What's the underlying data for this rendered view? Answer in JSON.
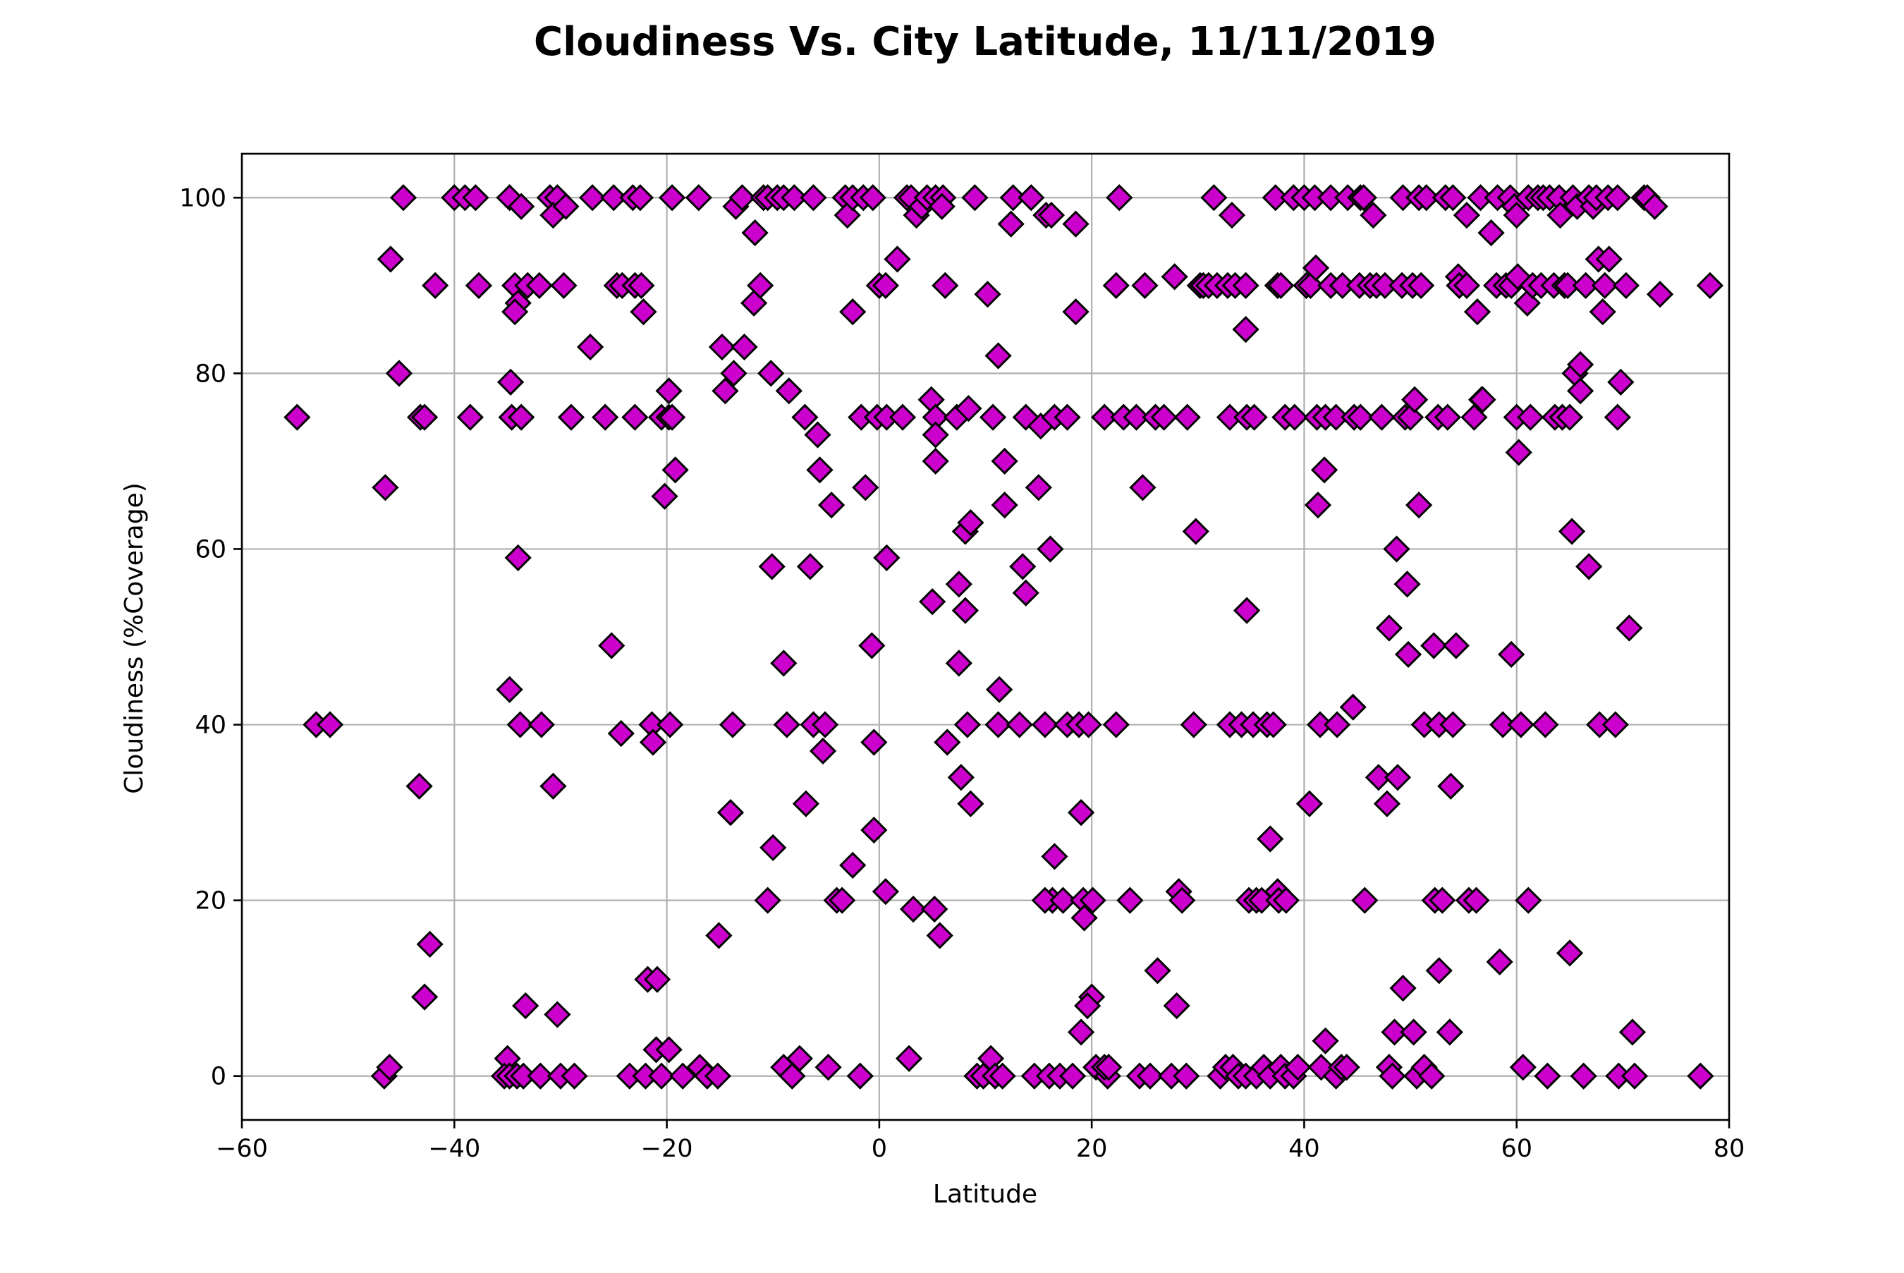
{
  "chart_data": {
    "type": "scatter",
    "title": "Cloudiness Vs. City Latitude, 11/11/2019",
    "xlabel": "Latitude",
    "ylabel": "Cloudiness (%Coverage)",
    "xlim": [
      -60,
      80
    ],
    "ylim": [
      -5,
      105
    ],
    "xticks": [
      -60,
      -40,
      -20,
      0,
      20,
      40,
      60,
      80
    ],
    "yticks": [
      0,
      20,
      40,
      60,
      80,
      100
    ],
    "xtick_labels": [
      "−60",
      "−40",
      "−20",
      "0",
      "20",
      "40",
      "60",
      "80"
    ],
    "ytick_labels": [
      "0",
      "20",
      "40",
      "60",
      "80",
      "100"
    ],
    "grid": true,
    "marker": "diamond",
    "marker_color": "#cc00cc",
    "marker_edge_color": "#000000",
    "points": [
      [
        -54.8,
        75
      ],
      [
        -53,
        40
      ],
      [
        -51.7,
        40
      ],
      [
        -46,
        93
      ],
      [
        -46.5,
        67
      ],
      [
        -44.8,
        100
      ],
      [
        -45.2,
        80
      ],
      [
        -43.2,
        75
      ],
      [
        -42.8,
        75
      ],
      [
        -43.3,
        33
      ],
      [
        -41.8,
        90
      ],
      [
        -42.3,
        15
      ],
      [
        -42.8,
        9
      ],
      [
        -46.6,
        0
      ],
      [
        -46.1,
        1
      ],
      [
        -40,
        100
      ],
      [
        -39,
        100
      ],
      [
        -38,
        100
      ],
      [
        -38.5,
        75
      ],
      [
        -37.7,
        90
      ],
      [
        -34.8,
        100
      ],
      [
        -33.7,
        99
      ],
      [
        -34.3,
        90
      ],
      [
        -33.1,
        90
      ],
      [
        -34,
        88
      ],
      [
        -34.3,
        87
      ],
      [
        -34.7,
        79
      ],
      [
        -34.6,
        75
      ],
      [
        -33.7,
        75
      ],
      [
        -34,
        59
      ],
      [
        -34.8,
        44
      ],
      [
        -33.8,
        40
      ],
      [
        -33.3,
        8
      ],
      [
        -35,
        2
      ],
      [
        -35.3,
        0
      ],
      [
        -34.8,
        0
      ],
      [
        -34.1,
        0
      ],
      [
        -33.5,
        0
      ],
      [
        -31,
        100
      ],
      [
        -30.3,
        100
      ],
      [
        -30.7,
        98
      ],
      [
        -29.5,
        99
      ],
      [
        -32,
        90
      ],
      [
        -29.7,
        90
      ],
      [
        -31.8,
        40
      ],
      [
        -30.7,
        33
      ],
      [
        -30.3,
        7
      ],
      [
        -31.9,
        0
      ],
      [
        -30,
        0
      ],
      [
        -29,
        75
      ],
      [
        -28.7,
        0
      ],
      [
        -27.2,
        83
      ],
      [
        -27,
        100
      ],
      [
        -25,
        100
      ],
      [
        -24.7,
        90
      ],
      [
        -24.2,
        90
      ],
      [
        -25.8,
        75
      ],
      [
        -25.2,
        49
      ],
      [
        -24.3,
        39
      ],
      [
        -23.5,
        0
      ],
      [
        -23.2,
        100
      ],
      [
        -22.5,
        100
      ],
      [
        -23,
        90
      ],
      [
        -22.4,
        90
      ],
      [
        -22.2,
        87
      ],
      [
        -23,
        75
      ],
      [
        -22,
        0
      ],
      [
        -21.4,
        40
      ],
      [
        -21.3,
        38
      ],
      [
        -21.8,
        11
      ],
      [
        -20.9,
        11
      ],
      [
        -21,
        3
      ],
      [
        -20.5,
        0
      ],
      [
        -20.5,
        75
      ],
      [
        -19.8,
        75
      ],
      [
        -19.5,
        75
      ],
      [
        -20.2,
        66
      ],
      [
        -19.8,
        78
      ],
      [
        -19.2,
        69
      ],
      [
        -19.5,
        100
      ],
      [
        -19.7,
        40
      ],
      [
        -19.8,
        3
      ],
      [
        -18.5,
        0
      ],
      [
        -17,
        100
      ],
      [
        -16.9,
        1
      ],
      [
        -16.2,
        0
      ],
      [
        -15.2,
        0
      ],
      [
        -15.1,
        16
      ],
      [
        -14.8,
        83
      ],
      [
        -14.5,
        78
      ],
      [
        -13.7,
        80
      ],
      [
        -13.8,
        40
      ],
      [
        -14,
        30
      ],
      [
        -13.5,
        99
      ],
      [
        -12.9,
        100
      ],
      [
        -12.7,
        83
      ],
      [
        -11.7,
        96
      ],
      [
        -11.8,
        88
      ],
      [
        -11.2,
        90
      ],
      [
        -10.9,
        100
      ],
      [
        -10.5,
        100
      ],
      [
        -10.2,
        80
      ],
      [
        -10.5,
        20
      ],
      [
        -10,
        26
      ],
      [
        -10.1,
        58
      ],
      [
        -9.6,
        100
      ],
      [
        -9,
        100
      ],
      [
        -9,
        47
      ],
      [
        -8.5,
        78
      ],
      [
        -8.7,
        40
      ],
      [
        -9,
        1
      ],
      [
        -8.2,
        0
      ],
      [
        -8,
        100
      ],
      [
        -7.5,
        2
      ],
      [
        -7,
        75
      ],
      [
        -6.9,
        31
      ],
      [
        -6.2,
        100
      ],
      [
        -6.5,
        58
      ],
      [
        -6.2,
        40
      ],
      [
        -5.8,
        73
      ],
      [
        -5.6,
        69
      ],
      [
        -5.3,
        37
      ],
      [
        -5.1,
        40
      ],
      [
        -4.8,
        1
      ],
      [
        -4.5,
        65
      ],
      [
        -4,
        20
      ],
      [
        -3.5,
        20
      ],
      [
        -3.2,
        100
      ],
      [
        -3,
        98
      ],
      [
        -2.5,
        100
      ],
      [
        -2.5,
        87
      ],
      [
        -2.5,
        24
      ],
      [
        -1.7,
        75
      ],
      [
        -1.5,
        100
      ],
      [
        -1.3,
        67
      ],
      [
        -1.8,
        0
      ],
      [
        -0.6,
        100
      ],
      [
        -0.7,
        49
      ],
      [
        -0.5,
        38
      ],
      [
        -0.5,
        28
      ],
      [
        -0.2,
        75
      ],
      [
        0,
        90
      ],
      [
        0.6,
        90
      ],
      [
        0.7,
        75
      ],
      [
        0.7,
        59
      ],
      [
        0.6,
        21
      ],
      [
        1.7,
        93
      ],
      [
        2.2,
        75
      ],
      [
        2.6,
        100
      ],
      [
        2.8,
        2
      ],
      [
        3,
        100
      ],
      [
        3.2,
        19
      ],
      [
        3.5,
        98
      ],
      [
        4,
        99
      ],
      [
        4.5,
        100
      ],
      [
        5.3,
        100
      ],
      [
        4.9,
        77
      ],
      [
        5.3,
        75
      ],
      [
        5.3,
        73
      ],
      [
        5.3,
        70
      ],
      [
        5,
        54
      ],
      [
        5.2,
        19
      ],
      [
        5.7,
        16
      ],
      [
        6,
        100
      ],
      [
        5.9,
        99
      ],
      [
        6.2,
        90
      ],
      [
        6.4,
        38
      ],
      [
        7.3,
        75
      ],
      [
        7.5,
        56
      ],
      [
        7.5,
        47
      ],
      [
        7.7,
        34
      ],
      [
        8.1,
        62
      ],
      [
        8.4,
        76
      ],
      [
        8.1,
        53
      ],
      [
        8.6,
        31
      ],
      [
        8.6,
        63
      ],
      [
        8.3,
        40
      ],
      [
        9,
        100
      ],
      [
        9.2,
        0
      ],
      [
        9.8,
        0
      ],
      [
        10.2,
        89
      ],
      [
        10.7,
        75
      ],
      [
        10.5,
        2
      ],
      [
        10.9,
        0
      ],
      [
        11.2,
        82
      ],
      [
        11.3,
        44
      ],
      [
        11.8,
        70
      ],
      [
        11.8,
        65
      ],
      [
        11.6,
        0
      ],
      [
        11.2,
        40
      ],
      [
        12.4,
        97
      ],
      [
        12.6,
        100
      ],
      [
        13.2,
        40
      ],
      [
        13.5,
        58
      ],
      [
        13.8,
        55
      ],
      [
        13.8,
        75
      ],
      [
        14.3,
        100
      ],
      [
        14.6,
        0
      ],
      [
        15,
        67
      ],
      [
        15.2,
        74
      ],
      [
        15.6,
        40
      ],
      [
        15.7,
        98
      ],
      [
        16.2,
        98
      ],
      [
        16.1,
        60
      ],
      [
        16.5,
        75
      ],
      [
        16.5,
        25
      ],
      [
        16.3,
        20
      ],
      [
        15.6,
        20
      ],
      [
        16,
        0
      ],
      [
        17,
        0
      ],
      [
        17.3,
        20
      ],
      [
        17.7,
        75
      ],
      [
        17.7,
        40
      ],
      [
        18.2,
        0
      ],
      [
        18.5,
        97
      ],
      [
        18.5,
        87
      ],
      [
        18.8,
        40
      ],
      [
        19,
        30
      ],
      [
        19.2,
        20
      ],
      [
        19.3,
        18
      ],
      [
        19,
        5
      ],
      [
        19.7,
        40
      ],
      [
        20.1,
        20
      ],
      [
        20,
        9
      ],
      [
        19.6,
        8
      ],
      [
        20.4,
        1
      ],
      [
        21.5,
        0
      ],
      [
        21.2,
        75
      ],
      [
        21.2,
        1
      ],
      [
        21.6,
        1
      ],
      [
        22.3,
        40
      ],
      [
        22.6,
        100
      ],
      [
        22.3,
        90
      ],
      [
        23,
        75
      ],
      [
        23.6,
        20
      ],
      [
        24.2,
        75
      ],
      [
        24.5,
        0
      ],
      [
        24.8,
        67
      ],
      [
        25,
        90
      ],
      [
        25.5,
        0
      ],
      [
        26,
        75
      ],
      [
        26.2,
        12
      ],
      [
        26.8,
        75
      ],
      [
        27.5,
        0
      ],
      [
        27.8,
        91
      ],
      [
        28,
        8
      ],
      [
        28.2,
        21
      ],
      [
        28.5,
        20
      ],
      [
        29,
        75
      ],
      [
        28.9,
        0
      ],
      [
        29.6,
        40
      ],
      [
        29.8,
        62
      ],
      [
        30.2,
        90
      ],
      [
        30.5,
        90
      ],
      [
        31.5,
        100
      ],
      [
        31,
        90
      ],
      [
        31.8,
        90
      ],
      [
        32.1,
        0
      ],
      [
        32.6,
        1
      ],
      [
        33.2,
        98
      ],
      [
        32.8,
        90
      ],
      [
        33.5,
        90
      ],
      [
        33,
        75
      ],
      [
        33,
        40
      ],
      [
        33.3,
        1
      ],
      [
        34.1,
        40
      ],
      [
        34.5,
        90
      ],
      [
        34.5,
        85
      ],
      [
        34.6,
        75
      ],
      [
        34.6,
        53
      ],
      [
        34.8,
        20
      ],
      [
        33.8,
        0
      ],
      [
        34.5,
        0
      ],
      [
        35.3,
        75
      ],
      [
        35.2,
        40
      ],
      [
        35.5,
        20
      ],
      [
        35.5,
        0
      ],
      [
        36,
        20
      ],
      [
        36.2,
        1
      ],
      [
        36.5,
        40
      ],
      [
        36.8,
        27
      ],
      [
        36.8,
        0
      ],
      [
        37.1,
        40
      ],
      [
        37.3,
        100
      ],
      [
        37.5,
        90
      ],
      [
        37.8,
        90
      ],
      [
        37.5,
        21
      ],
      [
        37.6,
        20
      ],
      [
        37.8,
        1
      ],
      [
        38.2,
        75
      ],
      [
        38.3,
        20
      ],
      [
        38.2,
        0
      ],
      [
        39,
        100
      ],
      [
        39.1,
        75
      ],
      [
        39,
        0
      ],
      [
        39.4,
        1
      ],
      [
        40,
        100
      ],
      [
        40.2,
        90
      ],
      [
        40.5,
        31
      ],
      [
        40.6,
        90
      ],
      [
        41,
        100
      ],
      [
        41.1,
        92
      ],
      [
        41.3,
        65
      ],
      [
        41.2,
        75
      ],
      [
        41.5,
        40
      ],
      [
        41.6,
        1
      ],
      [
        42,
        75
      ],
      [
        41.9,
        69
      ],
      [
        42,
        4
      ],
      [
        42.5,
        100
      ],
      [
        42.5,
        90
      ],
      [
        43,
        75
      ],
      [
        43.1,
        40
      ],
      [
        43.6,
        90
      ],
      [
        43,
        0
      ],
      [
        43.5,
        1
      ],
      [
        44,
        1
      ],
      [
        44.1,
        100
      ],
      [
        44.6,
        42
      ],
      [
        44.7,
        75
      ],
      [
        45.3,
        100
      ],
      [
        45.6,
        100
      ],
      [
        45.2,
        90
      ],
      [
        45.3,
        75
      ],
      [
        45.7,
        20
      ],
      [
        46.2,
        90
      ],
      [
        46.5,
        98
      ],
      [
        46.8,
        90
      ],
      [
        47,
        34
      ],
      [
        47.3,
        75
      ],
      [
        47.6,
        90
      ],
      [
        47.8,
        31
      ],
      [
        48,
        51
      ],
      [
        48,
        1
      ],
      [
        48.3,
        0
      ],
      [
        48.5,
        5
      ],
      [
        48.7,
        60
      ],
      [
        48.8,
        34
      ],
      [
        49.2,
        90
      ],
      [
        49.3,
        100
      ],
      [
        49.3,
        10
      ],
      [
        49.5,
        75
      ],
      [
        49.7,
        56
      ],
      [
        49.8,
        48
      ],
      [
        50,
        75
      ],
      [
        50.2,
        90
      ],
      [
        50.4,
        77
      ],
      [
        50.3,
        5
      ],
      [
        50.6,
        0
      ],
      [
        50.8,
        100
      ],
      [
        50.8,
        65
      ],
      [
        51,
        90
      ],
      [
        51.3,
        40
      ],
      [
        51.3,
        1
      ],
      [
        51.5,
        100
      ],
      [
        52,
        0
      ],
      [
        52.2,
        49
      ],
      [
        52.3,
        20
      ],
      [
        52.6,
        75
      ],
      [
        52.7,
        12
      ],
      [
        52.7,
        40
      ],
      [
        53,
        20
      ],
      [
        53.3,
        100
      ],
      [
        53.5,
        75
      ],
      [
        53.8,
        33
      ],
      [
        53.7,
        5
      ],
      [
        54,
        100
      ],
      [
        54,
        40
      ],
      [
        54.3,
        49
      ],
      [
        54.5,
        91
      ],
      [
        54.6,
        90
      ],
      [
        55.3,
        98
      ],
      [
        55.3,
        90
      ],
      [
        55.5,
        20
      ],
      [
        56,
        75
      ],
      [
        56.3,
        87
      ],
      [
        56.7,
        77
      ],
      [
        56.2,
        20
      ],
      [
        56.6,
        100
      ],
      [
        56.8,
        77
      ],
      [
        57.6,
        96
      ],
      [
        58.1,
        90
      ],
      [
        58.2,
        100
      ],
      [
        58.4,
        13
      ],
      [
        58.7,
        40
      ],
      [
        59,
        90
      ],
      [
        59.4,
        100
      ],
      [
        59.5,
        90
      ],
      [
        59.5,
        48
      ],
      [
        59.8,
        99
      ],
      [
        60,
        98
      ],
      [
        60.1,
        91
      ],
      [
        60,
        75
      ],
      [
        60.2,
        71
      ],
      [
        60.4,
        40
      ],
      [
        60.6,
        1
      ],
      [
        61.1,
        100
      ],
      [
        61.1,
        20
      ],
      [
        61,
        88
      ],
      [
        61.3,
        75
      ],
      [
        61.5,
        90
      ],
      [
        62,
        100
      ],
      [
        62.3,
        90
      ],
      [
        62.5,
        100
      ],
      [
        62.7,
        40
      ],
      [
        62.9,
        0
      ],
      [
        63.1,
        100
      ],
      [
        63.5,
        90
      ],
      [
        63.6,
        75
      ],
      [
        64,
        100
      ],
      [
        64.1,
        98
      ],
      [
        64.5,
        90
      ],
      [
        64.3,
        75
      ],
      [
        64.8,
        90
      ],
      [
        65,
        14
      ],
      [
        65,
        75
      ],
      [
        65.2,
        62
      ],
      [
        65.3,
        100
      ],
      [
        65.5,
        80
      ],
      [
        65.7,
        99
      ],
      [
        66,
        81
      ],
      [
        66,
        78
      ],
      [
        66.3,
        0
      ],
      [
        66.5,
        90
      ],
      [
        66.8,
        100
      ],
      [
        66.8,
        58
      ],
      [
        67.2,
        99
      ],
      [
        67.7,
        93
      ],
      [
        67.5,
        100
      ],
      [
        67.8,
        40
      ],
      [
        68.1,
        87
      ],
      [
        68.3,
        90
      ],
      [
        68.6,
        100
      ],
      [
        68.7,
        93
      ],
      [
        69.3,
        40
      ],
      [
        69.5,
        100
      ],
      [
        69.5,
        75
      ],
      [
        69.6,
        0
      ],
      [
        69.8,
        79
      ],
      [
        70.3,
        90
      ],
      [
        70.6,
        51
      ],
      [
        70.9,
        5
      ],
      [
        71.1,
        0
      ],
      [
        72,
        100
      ],
      [
        72.3,
        100
      ],
      [
        73,
        99
      ],
      [
        73.5,
        89
      ],
      [
        77.3,
        0
      ],
      [
        78.2,
        90
      ]
    ]
  }
}
